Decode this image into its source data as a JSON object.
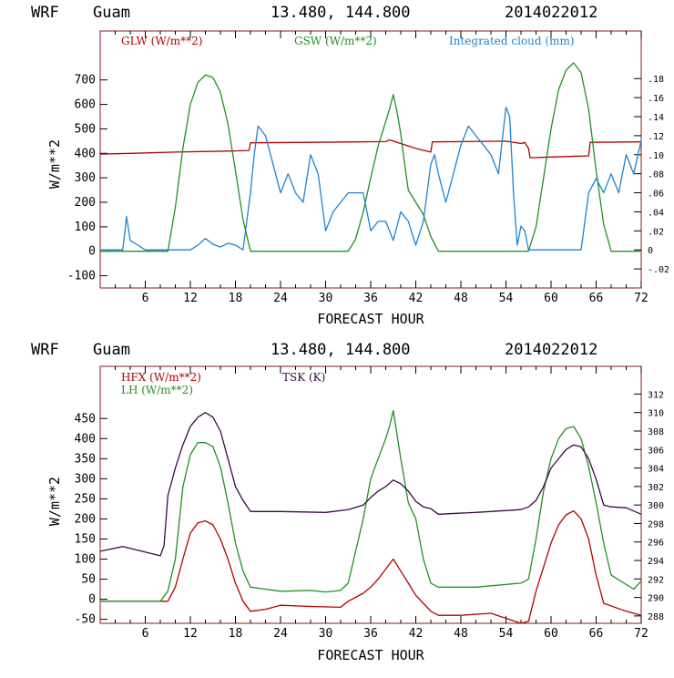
{
  "colors": {
    "red": "#b40000",
    "green": "#229022",
    "blue": "#1e82d2",
    "purple": "#3a0a46",
    "frame": "#8a1a1a"
  },
  "chart_data": [
    {
      "type": "line",
      "header": {
        "model": "WRF",
        "site": "Guam",
        "coords": "13.480, 144.800",
        "init": "2014022012"
      },
      "xlabel": "FORECAST HOUR",
      "ylabel": "W/m**2",
      "xlim": [
        0,
        72
      ],
      "ylim": [
        -150,
        900
      ],
      "y2lim": [
        -0.04,
        0.23
      ],
      "xticks": [
        "6",
        "12",
        "18",
        "24",
        "30",
        "36",
        "42",
        "48",
        "54",
        "60",
        "66",
        "72"
      ],
      "yticks": [
        "-100",
        "0",
        "100",
        "200",
        "300",
        "400",
        "500",
        "600",
        "700"
      ],
      "y2ticks": [
        "-.02",
        "0",
        ".02",
        ".04",
        ".06",
        ".08",
        ".10",
        ".12",
        ".14",
        ".16",
        ".18"
      ],
      "series": [
        {
          "name": "GLW (W/m**2)",
          "color": "#b40000",
          "axis": "left",
          "x": [
            0,
            4,
            10,
            18,
            19.8,
            20,
            28,
            38,
            38.5,
            40,
            42,
            44,
            44.2,
            54,
            56,
            56.5,
            57,
            57.2,
            60,
            65,
            65.2,
            72
          ],
          "y": [
            397,
            400,
            405,
            410,
            412,
            443,
            445,
            448,
            455,
            440,
            420,
            405,
            447,
            450,
            440,
            445,
            420,
            382,
            385,
            390,
            445,
            447
          ]
        },
        {
          "name": "GSW (W/m**2)",
          "color": "#229022",
          "axis": "left",
          "x": [
            0,
            9,
            10,
            11,
            12,
            13,
            14,
            15,
            16,
            17,
            18,
            19,
            20,
            33,
            34,
            35,
            36,
            37,
            38,
            38.5,
            39,
            39.5,
            40,
            40.5,
            41,
            42,
            43,
            44,
            45,
            57,
            58,
            59,
            60,
            61,
            62,
            63,
            64,
            65,
            66,
            67,
            68,
            72
          ],
          "y": [
            0,
            0,
            180,
            420,
            600,
            690,
            720,
            710,
            650,
            520,
            330,
            130,
            0,
            0,
            50,
            160,
            300,
            430,
            530,
            580,
            640,
            570,
            480,
            360,
            250,
            200,
            150,
            60,
            0,
            0,
            100,
            300,
            500,
            660,
            740,
            770,
            730,
            580,
            330,
            110,
            0,
            0
          ]
        },
        {
          "name": "Integrated cloud (mm)",
          "color": "#1e82d2",
          "axis": "right",
          "x": [
            0,
            3,
            3.5,
            4,
            5,
            6,
            12,
            13,
            14,
            15,
            16,
            17,
            18,
            19,
            20,
            20.5,
            21,
            22,
            23,
            24,
            25,
            26,
            27,
            28,
            29,
            30,
            31,
            32,
            33,
            34,
            35,
            36,
            37,
            38,
            39,
            40,
            41,
            42,
            43,
            44,
            44.5,
            45,
            46,
            47,
            48,
            49,
            50,
            51,
            52,
            53,
            54,
            54.5,
            55,
            55.5,
            56,
            56.5,
            57,
            58,
            64,
            65,
            66,
            67,
            68,
            69,
            70,
            71,
            72
          ],
          "y": [
            0,
            0,
            0.035,
            0.01,
            0.005,
            0,
            0,
            0.005,
            0.012,
            0.006,
            0.003,
            0.007,
            0.005,
            0,
            0.06,
            0.1,
            0.13,
            0.12,
            0.09,
            0.06,
            0.08,
            0.06,
            0.05,
            0.1,
            0.08,
            0.02,
            0.04,
            0.05,
            0.06,
            0.06,
            0.06,
            0.02,
            0.03,
            0.03,
            0.01,
            0.04,
            0.03,
            0.005,
            0.03,
            0.09,
            0.1,
            0.08,
            0.05,
            0.08,
            0.11,
            0.13,
            0.12,
            0.11,
            0.1,
            0.08,
            0.15,
            0.14,
            0.06,
            0.005,
            0.025,
            0.02,
            0,
            0,
            0,
            0.06,
            0.075,
            0.06,
            0.08,
            0.06,
            0.1,
            0.08,
            0.115
          ]
        }
      ]
    },
    {
      "type": "line",
      "header": {
        "model": "WRF",
        "site": "Guam",
        "coords": "13.480, 144.800",
        "init": "2014022012"
      },
      "xlabel": "FORECAST HOUR",
      "ylabel": "W/m**2",
      "xlim": [
        0,
        72
      ],
      "ylim": [
        -60,
        580
      ],
      "y2lim": [
        287.2,
        315
      ],
      "xticks": [
        "6",
        "12",
        "18",
        "24",
        "30",
        "36",
        "42",
        "48",
        "54",
        "60",
        "66",
        "72"
      ],
      "yticks": [
        "-50",
        "0",
        "50",
        "100",
        "150",
        "200",
        "250",
        "300",
        "350",
        "400",
        "450"
      ],
      "y2ticks": [
        "288",
        "290",
        "292",
        "294",
        "296",
        "298",
        "300",
        "302",
        "304",
        "306",
        "308",
        "310",
        "312"
      ],
      "series": [
        {
          "name": "HFX (W/m**2)",
          "color": "#b40000",
          "axis": "left",
          "x": [
            0,
            9,
            10,
            11,
            12,
            13,
            14,
            15,
            16,
            17,
            18,
            19,
            20,
            22,
            24,
            28,
            32,
            33,
            35,
            36,
            37,
            38,
            39,
            40,
            41,
            42,
            43,
            44,
            45,
            48,
            52,
            56,
            57,
            58,
            59,
            60,
            61,
            62,
            63,
            64,
            65,
            66,
            67,
            70,
            72
          ],
          "y": [
            -5,
            -5,
            30,
            100,
            165,
            190,
            195,
            185,
            150,
            100,
            40,
            -5,
            -30,
            -25,
            -15,
            -18,
            -20,
            -5,
            15,
            30,
            50,
            75,
            100,
            70,
            40,
            10,
            -10,
            -30,
            -40,
            -40,
            -35,
            -60,
            -55,
            20,
            80,
            140,
            185,
            210,
            220,
            200,
            150,
            60,
            -10,
            -30,
            -40
          ]
        },
        {
          "name": "LH  (W/m**2)",
          "color": "#229022",
          "axis": "left",
          "x": [
            0,
            8,
            9,
            10,
            11,
            12,
            13,
            14,
            15,
            16,
            17,
            18,
            19,
            20,
            22,
            24,
            28,
            30,
            32,
            33,
            34,
            35,
            36,
            37,
            38,
            38.5,
            39,
            39.5,
            40,
            41,
            42,
            43,
            44,
            45,
            50,
            56,
            57,
            58,
            59,
            60,
            61,
            62,
            63,
            64,
            65,
            66,
            67,
            68,
            71,
            72
          ],
          "y": [
            -5,
            -5,
            20,
            100,
            280,
            360,
            390,
            390,
            380,
            330,
            240,
            140,
            70,
            30,
            25,
            20,
            22,
            18,
            22,
            40,
            120,
            200,
            300,
            350,
            400,
            430,
            470,
            410,
            350,
            240,
            200,
            100,
            40,
            30,
            30,
            40,
            50,
            150,
            270,
            350,
            400,
            425,
            430,
            400,
            330,
            240,
            140,
            60,
            25,
            45
          ]
        },
        {
          "name": "TSK (K)",
          "color": "#3a0a46",
          "axis": "right",
          "x": [
            0,
            3,
            8,
            8.5,
            9,
            10,
            11,
            12,
            13,
            14,
            15,
            16,
            17,
            18,
            19,
            20,
            24,
            30,
            33,
            35,
            36,
            37,
            38,
            39,
            40,
            41,
            42,
            43,
            44,
            45,
            50,
            56,
            57,
            58,
            59,
            60,
            61,
            62,
            63,
            64,
            65,
            66,
            67,
            68,
            70,
            72
          ],
          "y": [
            295,
            295.5,
            294.5,
            295.6,
            301,
            304,
            306.5,
            308.5,
            309.5,
            310,
            309.5,
            308,
            305,
            302,
            300.5,
            299.3,
            299.3,
            299.2,
            299.5,
            300,
            300.8,
            301.5,
            302,
            302.7,
            302.3,
            301.5,
            300.4,
            299.8,
            299.6,
            299,
            299.2,
            299.5,
            299.8,
            300.5,
            302,
            304,
            305,
            306,
            306.5,
            306.3,
            305,
            302.8,
            300,
            299.8,
            299.7,
            299
          ]
        }
      ]
    }
  ]
}
